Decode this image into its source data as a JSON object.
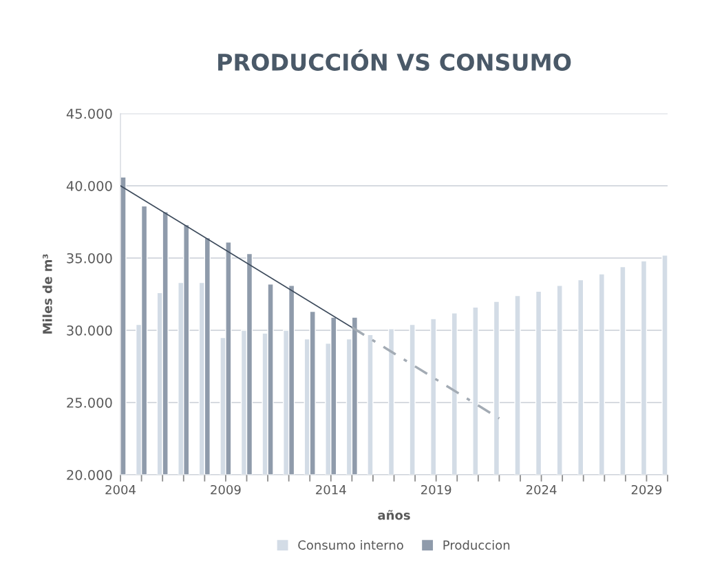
{
  "chart_data": {
    "type": "bar",
    "title": "PRODUCCIÓN VS CONSUMO",
    "xlabel": "años",
    "ylabel": "Miles de m³",
    "x": [
      2004,
      2005,
      2006,
      2007,
      2008,
      2009,
      2010,
      2011,
      2012,
      2013,
      2014,
      2015,
      2016,
      2017,
      2018,
      2019,
      2020,
      2021,
      2022,
      2023,
      2024,
      2025,
      2026,
      2027,
      2028,
      2029,
      2030
    ],
    "series": [
      {
        "name": "Consumo interno",
        "color": "#d3dce6",
        "values": [
          null,
          30400,
          32600,
          33300,
          33300,
          29500,
          30000,
          29800,
          30000,
          29400,
          29100,
          29400,
          29700,
          30100,
          30400,
          30800,
          31200,
          31600,
          32000,
          32400,
          32700,
          33100,
          33500,
          33900,
          34400,
          34800,
          35200
        ]
      },
      {
        "name": "Produccion",
        "color": "#8f9bab",
        "values": [
          40600,
          38600,
          38200,
          37300,
          36400,
          36100,
          35300,
          33200,
          33100,
          31300,
          30900,
          30900,
          null,
          null,
          null,
          null,
          null,
          null,
          null,
          null,
          null,
          null,
          null,
          null,
          null,
          null,
          null
        ]
      },
      {
        "type": "line",
        "color": "#3d4b5c",
        "line_style": "solid",
        "x": [
          2004,
          2015
        ],
        "values": [
          40000,
          30200
        ]
      },
      {
        "type": "line",
        "color": "#a3abb4",
        "line_style": "dashed",
        "x": [
          2015,
          2022
        ],
        "values": [
          30200,
          23900
        ]
      }
    ],
    "xlim": [
      2004,
      2030
    ],
    "xticks": [
      2004,
      {
        "value": 2005,
        "label": null
      },
      {
        "value": 2006,
        "label": null
      },
      {
        "value": 2007,
        "label": null
      },
      {
        "value": 2008,
        "label": null
      },
      2009,
      {
        "value": 2010,
        "label": null
      },
      {
        "value": 2011,
        "label": null
      },
      {
        "value": 2012,
        "label": null
      },
      {
        "value": 2013,
        "label": null
      },
      2014,
      {
        "value": 2015,
        "label": null
      },
      {
        "value": 2016,
        "label": null
      },
      {
        "value": 2017,
        "label": null
      },
      {
        "value": 2018,
        "label": null
      },
      2019,
      {
        "value": 2020,
        "label": null
      },
      {
        "value": 2021,
        "label": null
      },
      {
        "value": 2022,
        "label": null
      },
      {
        "value": 2023,
        "label": null
      },
      2024,
      {
        "value": 2025,
        "label": null
      },
      {
        "value": 2026,
        "label": null
      },
      {
        "value": 2027,
        "label": null
      },
      {
        "value": 2028,
        "label": null
      },
      2029,
      {
        "value": 2030,
        "label": null
      }
    ],
    "ylim": [
      20000,
      45000
    ],
    "yticks": [
      {
        "value": 20000,
        "label": "20.000"
      },
      {
        "value": 25000,
        "label": "25.000"
      },
      {
        "value": 30000,
        "label": "30.000"
      },
      {
        "value": 35000,
        "label": "35.000"
      },
      {
        "value": 40000,
        "label": "40.000"
      },
      {
        "value": 45000,
        "label": "45.000"
      }
    ],
    "grid": "y",
    "legend": "bottom"
  }
}
